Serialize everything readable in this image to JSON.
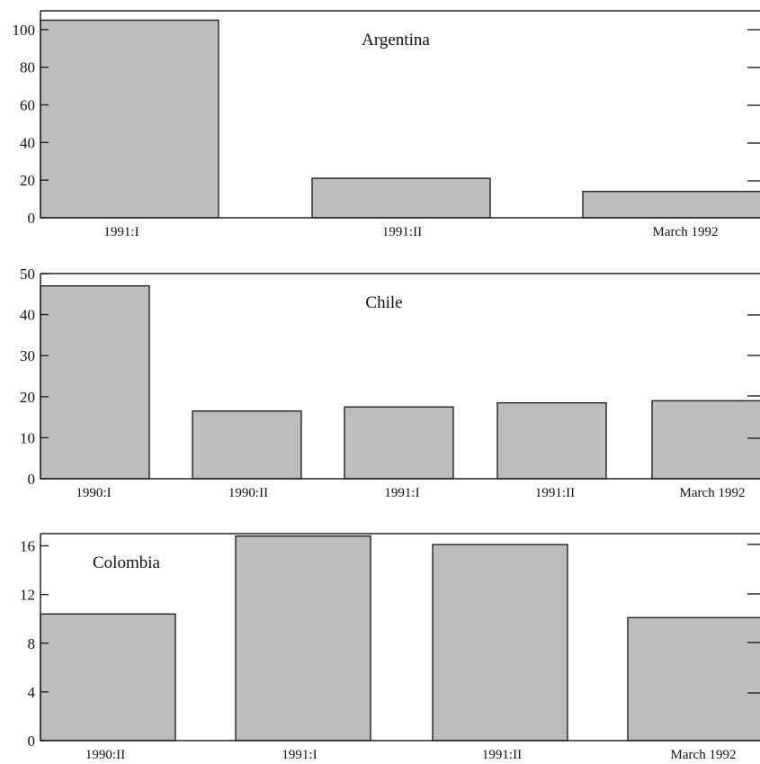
{
  "colors": {
    "bar_fill": "#bdbdbd",
    "bar_stroke": "#222222",
    "axis": "#222222",
    "background": "#ffffff"
  },
  "chart_data": [
    {
      "type": "bar",
      "title": "Argentina",
      "categories": [
        "1991:I",
        "1991:II",
        "March 1992"
      ],
      "values": [
        105,
        21,
        14
      ],
      "ylim": [
        0,
        110
      ],
      "yticks": [
        0,
        20,
        40,
        60,
        80,
        100
      ],
      "grid": false,
      "xlabel": "",
      "ylabel": ""
    },
    {
      "type": "bar",
      "title": "Chile",
      "categories": [
        "1990:I",
        "1990:II",
        "1991:I",
        "1991:II",
        "March 1992"
      ],
      "values": [
        47,
        16.5,
        17.5,
        18.5,
        19
      ],
      "ylim": [
        0,
        50
      ],
      "yticks": [
        0,
        10,
        20,
        30,
        40,
        50
      ],
      "grid": false,
      "xlabel": "",
      "ylabel": ""
    },
    {
      "type": "bar",
      "title": "Colombia",
      "categories": [
        "1990:II",
        "1991:I",
        "1991:II",
        "March 1992"
      ],
      "values": [
        10.4,
        16.8,
        16.1,
        10.1
      ],
      "ylim": [
        0,
        17
      ],
      "yticks": [
        0,
        4,
        8,
        12,
        16
      ],
      "grid": false,
      "xlabel": "",
      "ylabel": ""
    }
  ]
}
